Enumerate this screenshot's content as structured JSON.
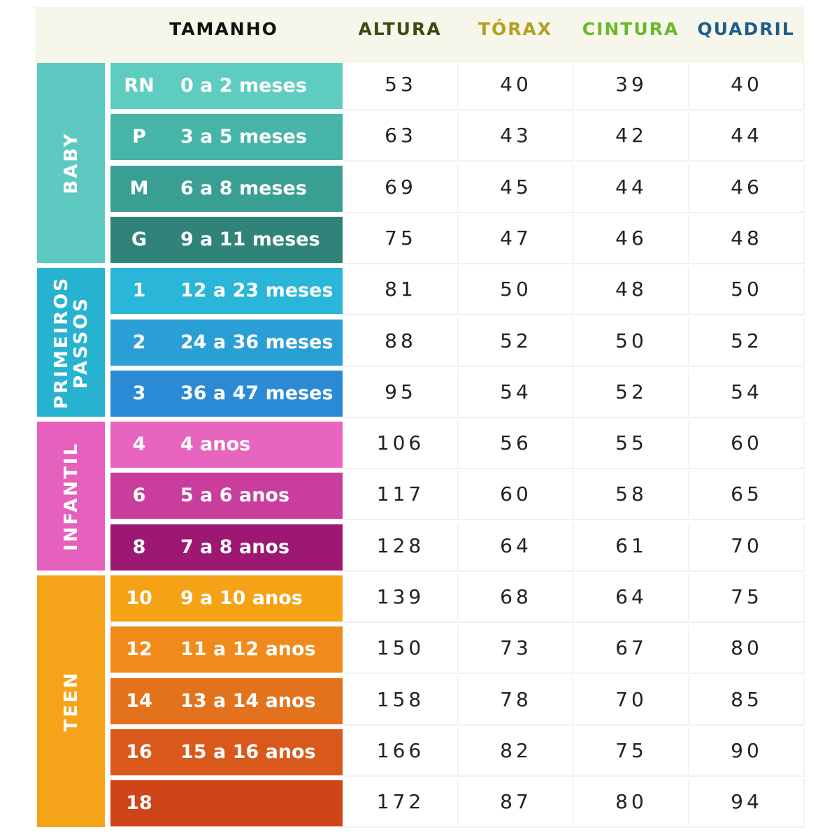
{
  "header": {
    "tamanho": "TAMANHO",
    "columns": [
      {
        "label": "ALTURA",
        "color": "#3d4a12"
      },
      {
        "label": "TÓRAX",
        "color": "#b3a020"
      },
      {
        "label": "CINTURA",
        "color": "#6cb82a"
      },
      {
        "label": "QUADRIL",
        "color": "#1f5d8c"
      }
    ]
  },
  "groups": [
    {
      "label": "BABY",
      "color": "#5ec9c0",
      "rows": 4
    },
    {
      "label": "PRIMEIROS\nPASSOS",
      "color": "#27b3cf",
      "rows": 3
    },
    {
      "label": "INFANTIL",
      "color": "#e660be",
      "rows": 3
    },
    {
      "label": "TEEN",
      "color": "#f5a318",
      "rows": 5
    }
  ],
  "rows": [
    {
      "code": "RN",
      "age": "0 a 2 meses",
      "color": "#5ecdc0",
      "values": [
        "53",
        "40",
        "39",
        "40"
      ]
    },
    {
      "code": "P",
      "age": "3 a 5 meses",
      "color": "#46b5a8",
      "values": [
        "63",
        "43",
        "42",
        "44"
      ]
    },
    {
      "code": "M",
      "age": "6 a 8 meses",
      "color": "#3a9f93",
      "values": [
        "69",
        "45",
        "44",
        "46"
      ]
    },
    {
      "code": "G",
      "age": "9 a 11 meses",
      "color": "#2f8379",
      "values": [
        "75",
        "47",
        "46",
        "48"
      ]
    },
    {
      "code": "1",
      "age": "12 a 23 meses",
      "color": "#29b6d8",
      "values": [
        "81",
        "50",
        "48",
        "50"
      ]
    },
    {
      "code": "2",
      "age": "24 a 36 meses",
      "color": "#2a9fd6",
      "values": [
        "88",
        "52",
        "50",
        "52"
      ]
    },
    {
      "code": "3",
      "age": "36 a 47 meses",
      "color": "#2b8ad6",
      "values": [
        "95",
        "54",
        "52",
        "54"
      ]
    },
    {
      "code": "4",
      "age": "4 anos",
      "color": "#e865bf",
      "values": [
        "106",
        "56",
        "55",
        "60"
      ]
    },
    {
      "code": "6",
      "age": "5 a 6 anos",
      "color": "#c93e9d",
      "values": [
        "117",
        "60",
        "58",
        "65"
      ]
    },
    {
      "code": "8",
      "age": "7 a 8 anos",
      "color": "#9c1872",
      "values": [
        "128",
        "64",
        "61",
        "70"
      ]
    },
    {
      "code": "10",
      "age": "9 a 10 anos",
      "color": "#f5a217",
      "values": [
        "139",
        "68",
        "64",
        "75"
      ]
    },
    {
      "code": "12",
      "age": "11 a 12 anos",
      "color": "#f08a1a",
      "values": [
        "150",
        "73",
        "67",
        "80"
      ]
    },
    {
      "code": "14",
      "age": "13 a 14 anos",
      "color": "#e2731c",
      "values": [
        "158",
        "78",
        "70",
        "85"
      ]
    },
    {
      "code": "16",
      "age": "15 a 16 anos",
      "color": "#d9591c",
      "values": [
        "166",
        "82",
        "75",
        "90"
      ]
    },
    {
      "code": "18",
      "age": "",
      "color": "#cf4418",
      "values": [
        "172",
        "87",
        "80",
        "94"
      ]
    }
  ]
}
